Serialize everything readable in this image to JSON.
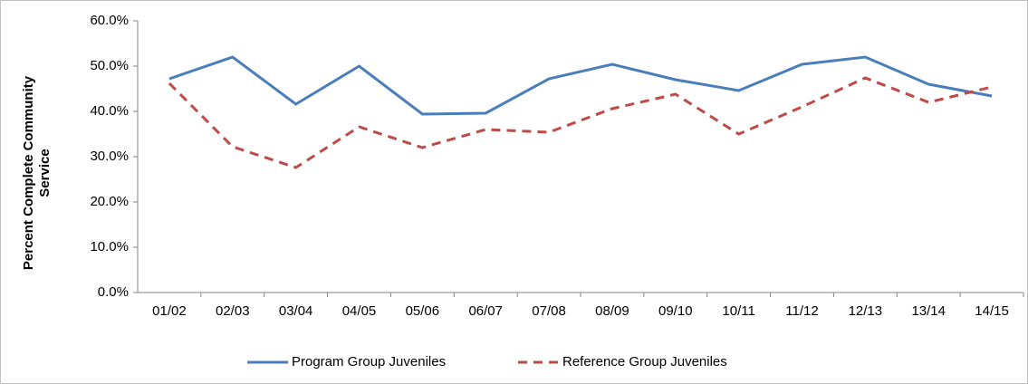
{
  "chart_data": {
    "type": "line",
    "y_label": "Percent Complete Community Service",
    "categories": [
      "01/02",
      "02/03",
      "03/04",
      "04/05",
      "05/06",
      "06/07",
      "07/08",
      "08/09",
      "09/10",
      "10/11",
      "11/12",
      "12/13",
      "13/14",
      "14/15"
    ],
    "series": [
      {
        "name": "Program Group Juveniles",
        "color": "#4a7ebb",
        "style": "solid",
        "values": [
          47.2,
          52.0,
          41.6,
          50.0,
          39.4,
          39.6,
          47.2,
          50.4,
          47.0,
          44.6,
          50.4,
          52.0,
          46.0,
          43.4
        ]
      },
      {
        "name": "Reference Group Juveniles",
        "color": "#be4b48",
        "style": "dashed",
        "values": [
          46.2,
          32.2,
          27.6,
          36.6,
          32.0,
          36.0,
          35.4,
          40.6,
          43.8,
          35.0,
          41.0,
          47.4,
          42.0,
          45.4
        ]
      }
    ],
    "ylim": [
      0,
      60
    ],
    "yticks": [
      {
        "value": 0,
        "label": "0.0%"
      },
      {
        "value": 10,
        "label": "10.0%"
      },
      {
        "value": 20,
        "label": "20.0%"
      },
      {
        "value": 30,
        "label": "30.0%"
      },
      {
        "value": 40,
        "label": "40.0%"
      },
      {
        "value": 50,
        "label": "50.0%"
      },
      {
        "value": 60,
        "label": "60.0%"
      }
    ],
    "grid": false,
    "legend": "bottom"
  }
}
